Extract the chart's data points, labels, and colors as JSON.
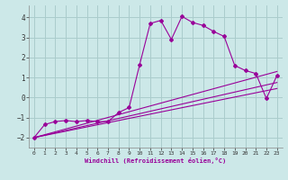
{
  "xlabel": "Windchill (Refroidissement éolien,°C)",
  "background_color": "#cce8e8",
  "grid_color": "#aacccc",
  "line_color": "#990099",
  "xlim": [
    -0.5,
    23.5
  ],
  "ylim": [
    -2.5,
    4.6
  ],
  "yticks": [
    -2,
    -1,
    0,
    1,
    2,
    3,
    4
  ],
  "xticks": [
    0,
    1,
    2,
    3,
    4,
    5,
    6,
    7,
    8,
    9,
    10,
    11,
    12,
    13,
    14,
    15,
    16,
    17,
    18,
    19,
    20,
    21,
    22,
    23
  ],
  "line1_x": [
    0,
    1,
    2,
    3,
    4,
    5,
    6,
    7,
    8,
    9,
    10,
    11,
    12,
    13,
    14,
    15,
    16,
    17,
    18,
    19,
    20,
    21,
    22,
    23
  ],
  "line1_y": [
    -2.0,
    -1.35,
    -1.2,
    -1.15,
    -1.2,
    -1.15,
    -1.2,
    -1.2,
    -0.75,
    -0.5,
    1.65,
    3.7,
    3.85,
    2.9,
    4.05,
    3.75,
    3.6,
    3.3,
    3.05,
    1.6,
    1.35,
    1.2,
    -0.05,
    1.1
  ],
  "line2_x": [
    0,
    23
  ],
  "line2_y": [
    -2.0,
    1.3
  ],
  "line3_x": [
    0,
    23
  ],
  "line3_y": [
    -2.0,
    0.75
  ],
  "line4_x": [
    0,
    23
  ],
  "line4_y": [
    -2.0,
    0.45
  ]
}
